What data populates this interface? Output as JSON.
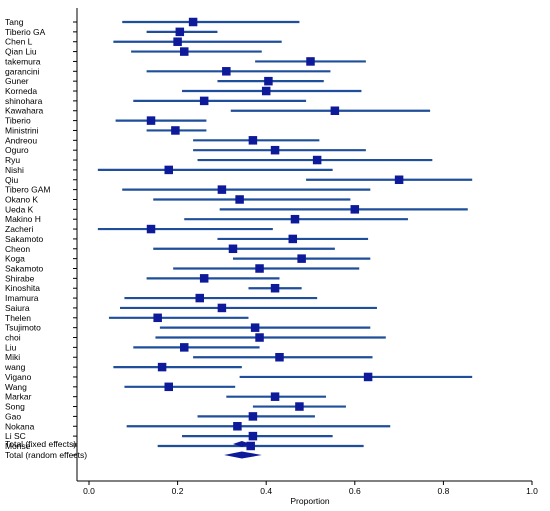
{
  "chart_data": {
    "type": "forest",
    "xlabel": "Proportion",
    "xlim": [
      0.0,
      1.0
    ],
    "x_ticks": [
      "0.0",
      "0.2",
      "0.4",
      "0.6",
      "0.8",
      "1.0"
    ],
    "x_tick_values": [
      0.0,
      0.2,
      0.4,
      0.6,
      0.8,
      1.0
    ],
    "studies": [
      {
        "name": "Tang",
        "est": 0.235,
        "lo": 0.075,
        "hi": 0.475
      },
      {
        "name": "Tiberio GA",
        "est": 0.205,
        "lo": 0.13,
        "hi": 0.29
      },
      {
        "name": "Chen L",
        "est": 0.2,
        "lo": 0.055,
        "hi": 0.435
      },
      {
        "name": "Qian Liu",
        "est": 0.215,
        "lo": 0.095,
        "hi": 0.39
      },
      {
        "name": "takemura",
        "est": 0.5,
        "lo": 0.375,
        "hi": 0.625
      },
      {
        "name": "garancini",
        "est": 0.31,
        "lo": 0.13,
        "hi": 0.545
      },
      {
        "name": "Guner",
        "est": 0.405,
        "lo": 0.29,
        "hi": 0.53
      },
      {
        "name": "Korneda",
        "est": 0.4,
        "lo": 0.21,
        "hi": 0.615
      },
      {
        "name": "shinohara",
        "est": 0.26,
        "lo": 0.1,
        "hi": 0.49
      },
      {
        "name": "Kawahara",
        "est": 0.555,
        "lo": 0.32,
        "hi": 0.77
      },
      {
        "name": "Tiberio",
        "est": 0.14,
        "lo": 0.06,
        "hi": 0.265
      },
      {
        "name": "Ministrini",
        "est": 0.195,
        "lo": 0.13,
        "hi": 0.265
      },
      {
        "name": "Andreou",
        "est": 0.37,
        "lo": 0.235,
        "hi": 0.52
      },
      {
        "name": "Oguro",
        "est": 0.42,
        "lo": 0.235,
        "hi": 0.625
      },
      {
        "name": "Ryu",
        "est": 0.515,
        "lo": 0.245,
        "hi": 0.775
      },
      {
        "name": "Nishi",
        "est": 0.18,
        "lo": 0.02,
        "hi": 0.55
      },
      {
        "name": "Qiu",
        "est": 0.7,
        "lo": 0.49,
        "hi": 0.865
      },
      {
        "name": "Tibero GAM",
        "est": 0.3,
        "lo": 0.075,
        "hi": 0.635
      },
      {
        "name": "Okano K",
        "est": 0.34,
        "lo": 0.145,
        "hi": 0.59
      },
      {
        "name": "Ueda K",
        "est": 0.6,
        "lo": 0.295,
        "hi": 0.855
      },
      {
        "name": "Makino H",
        "est": 0.465,
        "lo": 0.215,
        "hi": 0.72
      },
      {
        "name": "Zacheri",
        "est": 0.14,
        "lo": 0.02,
        "hi": 0.415
      },
      {
        "name": "Sakamoto",
        "est": 0.46,
        "lo": 0.29,
        "hi": 0.63
      },
      {
        "name": "Cheon",
        "est": 0.325,
        "lo": 0.145,
        "hi": 0.555
      },
      {
        "name": "Koga",
        "est": 0.48,
        "lo": 0.325,
        "hi": 0.635
      },
      {
        "name": "Sakamoto",
        "est": 0.385,
        "lo": 0.19,
        "hi": 0.61
      },
      {
        "name": "Shirabe",
        "est": 0.26,
        "lo": 0.13,
        "hi": 0.43
      },
      {
        "name": "Kinoshita",
        "est": 0.42,
        "lo": 0.36,
        "hi": 0.48
      },
      {
        "name": "Imamura",
        "est": 0.25,
        "lo": 0.08,
        "hi": 0.515
      },
      {
        "name": "Saiura",
        "est": 0.3,
        "lo": 0.07,
        "hi": 0.65
      },
      {
        "name": "Thelen",
        "est": 0.155,
        "lo": 0.045,
        "hi": 0.36
      },
      {
        "name": "Tsujimoto",
        "est": 0.375,
        "lo": 0.16,
        "hi": 0.635
      },
      {
        "name": "choi",
        "est": 0.385,
        "lo": 0.15,
        "hi": 0.67
      },
      {
        "name": "Liu",
        "est": 0.215,
        "lo": 0.1,
        "hi": 0.385
      },
      {
        "name": "Miki",
        "est": 0.43,
        "lo": 0.235,
        "hi": 0.64
      },
      {
        "name": "wang",
        "est": 0.165,
        "lo": 0.055,
        "hi": 0.345
      },
      {
        "name": "Vigano",
        "est": 0.63,
        "lo": 0.34,
        "hi": 0.865
      },
      {
        "name": "Wang",
        "est": 0.18,
        "lo": 0.08,
        "hi": 0.33
      },
      {
        "name": "Markar",
        "est": 0.42,
        "lo": 0.31,
        "hi": 0.535
      },
      {
        "name": "Song",
        "est": 0.475,
        "lo": 0.37,
        "hi": 0.58
      },
      {
        "name": "Gao",
        "est": 0.37,
        "lo": 0.245,
        "hi": 0.51
      },
      {
        "name": "Nokana",
        "est": 0.335,
        "lo": 0.085,
        "hi": 0.68
      },
      {
        "name": "Li SC",
        "est": 0.37,
        "lo": 0.21,
        "hi": 0.55
      },
      {
        "name": "Morise",
        "est": 0.365,
        "lo": 0.155,
        "hi": 0.62
      }
    ],
    "pooled": [
      {
        "name": "Total (fixed effects)",
        "est": 0.345,
        "lo": 0.325,
        "hi": 0.365
      },
      {
        "name": "Total (random effects)",
        "est": 0.345,
        "lo": 0.305,
        "hi": 0.39
      }
    ]
  }
}
